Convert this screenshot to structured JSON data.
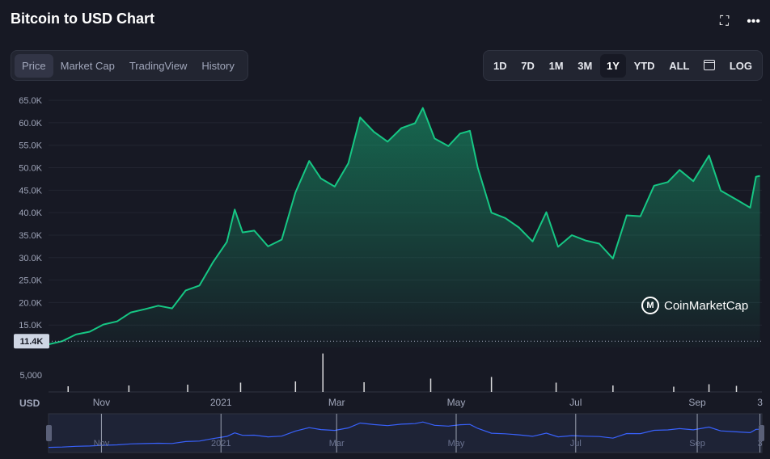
{
  "header": {
    "title": "Bitcoin to USD Chart",
    "expand_icon": "expand-icon",
    "more_icon": "more-icon"
  },
  "view_tabs": [
    {
      "label": "Price",
      "active": true
    },
    {
      "label": "Market Cap",
      "active": false
    },
    {
      "label": "TradingView",
      "active": false
    },
    {
      "label": "History",
      "active": false
    }
  ],
  "range_tabs": [
    {
      "label": "1D",
      "active": false
    },
    {
      "label": "7D",
      "active": false
    },
    {
      "label": "1M",
      "active": false
    },
    {
      "label": "3M",
      "active": false
    },
    {
      "label": "1Y",
      "active": true
    },
    {
      "label": "YTD",
      "active": false
    },
    {
      "label": "ALL",
      "active": false
    }
  ],
  "calendar_icon": "calendar-icon",
  "log_label": "LOG",
  "watermark": "CoinMarketCap",
  "colors": {
    "line": "#16c784",
    "volume": "#ffffff",
    "navigator_line": "#3861fb",
    "background": "#171924"
  },
  "chart_data": {
    "type": "area",
    "currency_label": "USD",
    "y_ticks": [
      "65.0K",
      "60.0K",
      "55.0K",
      "50.0K",
      "45.0K",
      "40.0K",
      "35.0K",
      "30.0K",
      "25.0K",
      "20.0K",
      "15.0K"
    ],
    "ylim": [
      10000,
      67000
    ],
    "current_marker": "11.4K",
    "volume_tick": "5,000",
    "x_ticks": [
      "Nov",
      "2021",
      "Mar",
      "May",
      "Jul",
      "Sep",
      "3"
    ],
    "x_tick_dates": [
      "2020-11-01",
      "2021-01-01",
      "2021-03-01",
      "2021-05-01",
      "2021-07-01",
      "2021-09-01",
      "2021-10-03"
    ],
    "series": [
      {
        "dates": [
          "2020-10-05",
          "2020-10-12",
          "2020-10-19",
          "2020-10-26",
          "2020-11-02",
          "2020-11-09",
          "2020-11-16",
          "2020-11-23",
          "2020-11-30",
          "2020-12-07",
          "2020-12-14",
          "2020-12-21",
          "2020-12-28",
          "2021-01-04",
          "2021-01-08",
          "2021-01-12",
          "2021-01-18",
          "2021-01-25",
          "2021-02-01",
          "2021-02-08",
          "2021-02-15",
          "2021-02-21",
          "2021-02-28",
          "2021-03-07",
          "2021-03-13",
          "2021-03-20",
          "2021-03-27",
          "2021-04-03",
          "2021-04-10",
          "2021-04-14",
          "2021-04-20",
          "2021-04-27",
          "2021-05-03",
          "2021-05-08",
          "2021-05-12",
          "2021-05-19",
          "2021-05-26",
          "2021-06-02",
          "2021-06-09",
          "2021-06-16",
          "2021-06-22",
          "2021-06-29",
          "2021-07-06",
          "2021-07-13",
          "2021-07-20",
          "2021-07-27",
          "2021-08-03",
          "2021-08-10",
          "2021-08-17",
          "2021-08-23",
          "2021-08-30",
          "2021-09-07",
          "2021-09-13",
          "2021-09-21",
          "2021-09-28",
          "2021-10-01",
          "2021-10-03"
        ],
        "values": [
          10700,
          11400,
          12900,
          13500,
          15100,
          15800,
          17800,
          18500,
          19300,
          18700,
          22700,
          23800,
          29000,
          33500,
          40700,
          35600,
          36000,
          32500,
          34000,
          44500,
          51500,
          47600,
          45800,
          51000,
          61200,
          58000,
          55800,
          58800,
          59900,
          63300,
          56500,
          54800,
          57600,
          58200,
          50000,
          40000,
          38800,
          36700,
          33600,
          40100,
          32400,
          35000,
          33800,
          33100,
          29800,
          39400,
          39200,
          46000,
          46800,
          49500,
          47000,
          52700,
          44900,
          42900,
          41100,
          48000,
          48200
        ]
      }
    ],
    "volume": {
      "dates": [
        "2020-10-15",
        "2020-11-15",
        "2020-12-15",
        "2021-01-11",
        "2021-02-08",
        "2021-02-22",
        "2021-03-15",
        "2021-04-18",
        "2021-05-19",
        "2021-06-21",
        "2021-07-20",
        "2021-08-20",
        "2021-09-07",
        "2021-09-21"
      ],
      "values": [
        1400,
        1600,
        1800,
        2300,
        2600,
        9500,
        2400,
        3300,
        3700,
        2300,
        1600,
        1300,
        1900,
        1500
      ]
    }
  }
}
